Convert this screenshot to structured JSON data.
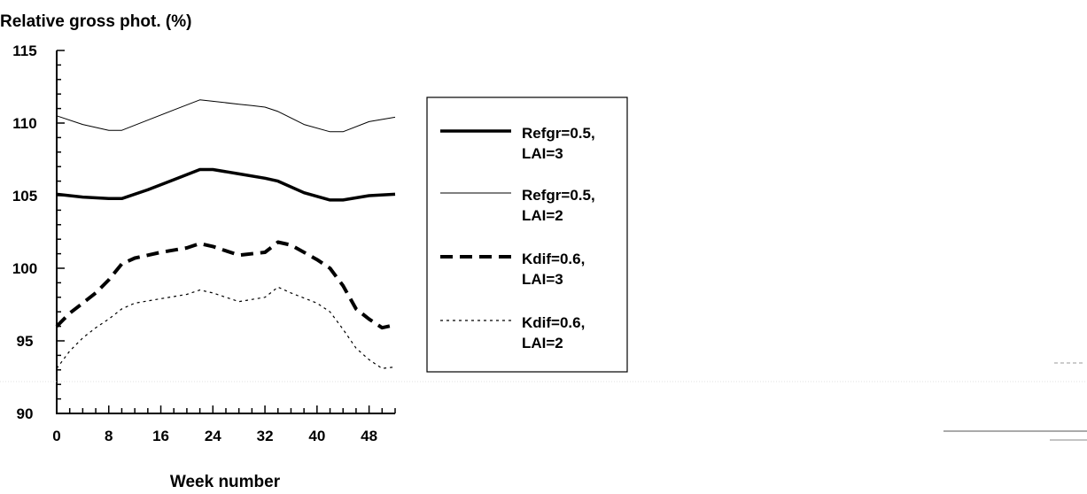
{
  "chart_data": {
    "type": "line",
    "title": "",
    "ylabel": "Relative gross phot. (%)",
    "xlabel": "Week number",
    "xlim": [
      0,
      52
    ],
    "ylim": [
      90,
      115
    ],
    "xticks": [
      "0",
      "8",
      "16",
      "24",
      "32",
      "40",
      "48"
    ],
    "yticks": [
      "90",
      "95",
      "100",
      "105",
      "110",
      "115"
    ],
    "grid": false,
    "legend_position": "right",
    "series": [
      {
        "name": "Refgr=0.5, LAI=3",
        "style": "thick-solid",
        "x": [
          0,
          4,
          8,
          10,
          14,
          18,
          22,
          24,
          28,
          32,
          34,
          38,
          42,
          44,
          48,
          52
        ],
        "y": [
          105.1,
          104.9,
          104.8,
          104.8,
          105.4,
          106.1,
          106.8,
          106.8,
          106.5,
          106.2,
          106.0,
          105.2,
          104.7,
          104.7,
          105.0,
          105.1
        ]
      },
      {
        "name": "Refgr=0.5, LAI=2",
        "style": "thin-solid",
        "x": [
          0,
          4,
          8,
          10,
          14,
          18,
          22,
          24,
          28,
          30,
          32,
          34,
          38,
          42,
          44,
          48,
          52
        ],
        "y": [
          110.5,
          109.9,
          109.5,
          109.5,
          110.2,
          110.9,
          111.6,
          111.5,
          111.3,
          111.2,
          111.1,
          110.8,
          109.9,
          109.4,
          109.4,
          110.1,
          110.4
        ]
      },
      {
        "name": "Kdif=0.6, LAI=3",
        "style": "thick-dashed",
        "x": [
          0,
          2,
          4,
          6,
          8,
          10,
          12,
          16,
          20,
          22,
          24,
          28,
          32,
          34,
          36,
          40,
          42,
          44,
          46,
          48,
          50,
          52
        ],
        "y": [
          96.0,
          96.9,
          97.6,
          98.3,
          99.2,
          100.3,
          100.7,
          101.1,
          101.4,
          101.7,
          101.5,
          100.9,
          101.1,
          101.8,
          101.6,
          100.6,
          100.0,
          98.8,
          97.2,
          96.5,
          95.9,
          96.1
        ]
      },
      {
        "name": "Kdif=0.6, LAI=2",
        "style": "thin-dotted",
        "x": [
          0,
          2,
          4,
          6,
          8,
          10,
          12,
          16,
          20,
          22,
          24,
          28,
          32,
          34,
          36,
          40,
          42,
          44,
          46,
          48,
          50,
          52
        ],
        "y": [
          93.1,
          94.3,
          95.2,
          95.9,
          96.5,
          97.2,
          97.6,
          97.9,
          98.2,
          98.5,
          98.3,
          97.7,
          98.0,
          98.7,
          98.3,
          97.6,
          97.0,
          95.8,
          94.5,
          93.7,
          93.1,
          93.2
        ]
      }
    ],
    "legend": [
      {
        "line1": "Refgr=0.5,",
        "line2": "LAI=3"
      },
      {
        "line1": "Refgr=0.5,",
        "line2": "LAI=2"
      },
      {
        "line1": "Kdif=0.6,",
        "line2": "LAI=3"
      },
      {
        "line1": "Kdif=0.6,",
        "line2": "LAI=2"
      }
    ]
  }
}
